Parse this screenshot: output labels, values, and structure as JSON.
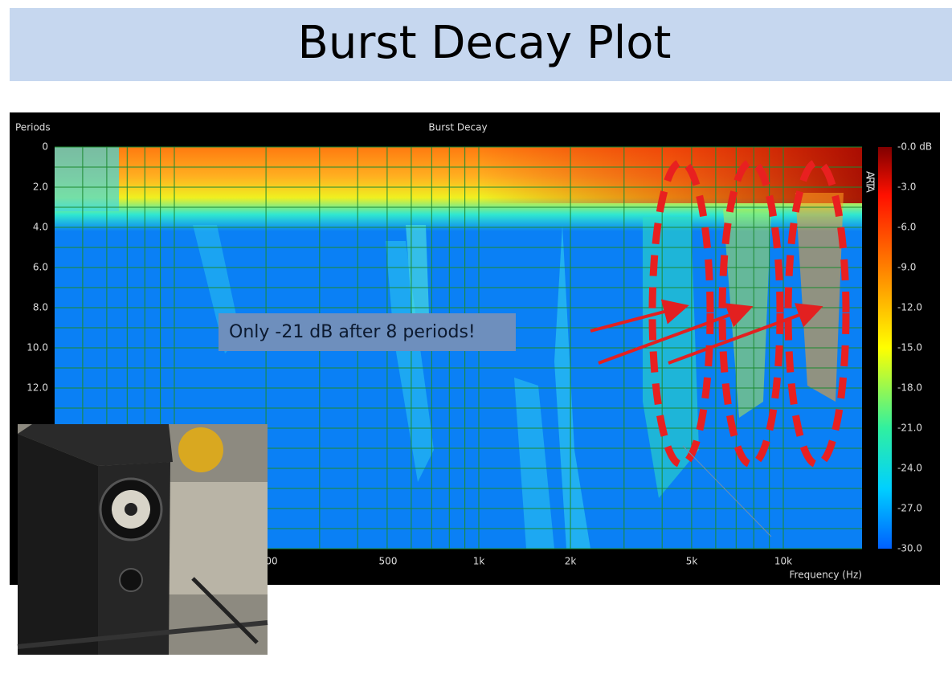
{
  "title": "Burst Decay Plot",
  "plot": {
    "title": "Burst Decay",
    "y_label": "Periods",
    "x_label": "Frequency (Hz)",
    "brand": "ARTA",
    "yticks": [
      "0",
      "2.0",
      "4.0",
      "6.0",
      "8.0",
      "10.0",
      "12.0"
    ],
    "xticks": [
      "00",
      "500",
      "1k",
      "2k",
      "5k",
      "10k"
    ],
    "colorbar_ticks": [
      "-0.0 dB",
      "-3.0",
      "-6.0",
      "-9.0",
      "-12.0",
      "-15.0",
      "-18.0",
      "-21.0",
      "-24.0",
      "-27.0",
      "-30.0"
    ]
  },
  "annotation": "Only -21 dB after 8 periods!"
}
